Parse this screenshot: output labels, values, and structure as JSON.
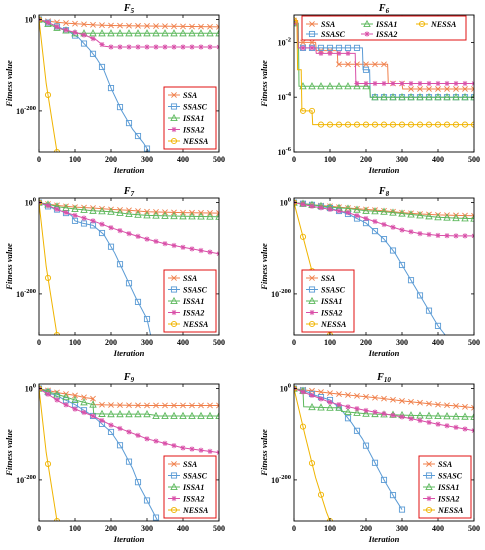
{
  "figure": {
    "colors": {
      "SSA": "#f07f4a",
      "SSASC": "#5b9bd5",
      "ISSA1": "#5cb85c",
      "ISSA2": "#d94fa8",
      "NESSA": "#f0b400"
    },
    "markers": {
      "SSA": "x",
      "SSASC": "square",
      "ISSA1": "triangle",
      "ISSA2": "star",
      "NESSA": "circle"
    }
  },
  "chart_data": [
    {
      "type": "line",
      "title": "F",
      "title_sub": "5",
      "xlabel": "Iteration",
      "ylabel": "Fitness value",
      "xlim": [
        0,
        500
      ],
      "xticks": [
        0,
        100,
        200,
        300,
        400,
        500
      ],
      "yscale": "log",
      "ylim_exp": [
        -290,
        10
      ],
      "yticks": [
        {
          "label": "10",
          "sup": "0",
          "exp": 0
        },
        {
          "label": "10",
          "sup": "-200",
          "exp": -200
        }
      ],
      "legend": {
        "position": "bottom-right",
        "layout": "1col"
      },
      "series": [
        {
          "name": "SSA",
          "x": [
            0,
            10,
            30,
            50,
            80,
            120,
            160,
            200,
            300,
            400,
            500
          ],
          "y_exp": [
            0,
            -2,
            -4,
            -6,
            -8,
            -10,
            -12,
            -13,
            -14,
            -15,
            -16
          ]
        },
        {
          "name": "SSASC",
          "x": [
            0,
            20,
            50,
            80,
            110,
            140,
            160,
            180,
            200,
            230,
            260,
            290,
            310
          ],
          "y_exp": [
            0,
            -5,
            -15,
            -25,
            -40,
            -65,
            -85,
            -110,
            -150,
            -200,
            -240,
            -270,
            -295
          ]
        },
        {
          "name": "ISSA1",
          "x": [
            0,
            20,
            50,
            80,
            100,
            500
          ],
          "y_exp": [
            0,
            -8,
            -18,
            -25,
            -30,
            -30
          ]
        },
        {
          "name": "ISSA2",
          "x": [
            0,
            30,
            60,
            100,
            130,
            160,
            180,
            200,
            230,
            500
          ],
          "y_exp": [
            0,
            -8,
            -20,
            -28,
            -35,
            -45,
            -58,
            -60,
            -60,
            -60
          ]
        },
        {
          "name": "NESSA",
          "x": [
            0,
            20,
            50
          ],
          "y_exp": [
            0,
            -140,
            -290
          ]
        }
      ]
    },
    {
      "type": "line",
      "title": "F",
      "title_sub": "6",
      "xlabel": "Iteration",
      "ylabel": "Fitness value",
      "xlim": [
        0,
        500
      ],
      "xticks": [
        0,
        100,
        200,
        300,
        400,
        500
      ],
      "yscale": "log",
      "ylim_exp": [
        -6,
        -1
      ],
      "yticks": [
        {
          "label": "10",
          "sup": "-2",
          "exp": -2
        },
        {
          "label": "10",
          "sup": "-4",
          "exp": -4
        },
        {
          "label": "10",
          "sup": "-6",
          "exp": -6
        }
      ],
      "legend": {
        "position": "top",
        "layout": "3col"
      },
      "series": [
        {
          "name": "SSA",
          "x": [
            0,
            10,
            12,
            60,
            62,
            120,
            122,
            260,
            262,
            300,
            302,
            500
          ],
          "y_exp": [
            -1.2,
            -1.2,
            -2.0,
            -2.0,
            -2.3,
            -2.3,
            -2.8,
            -2.8,
            -3.5,
            -3.5,
            -3.7,
            -3.7
          ]
        },
        {
          "name": "SSASC",
          "x": [
            0,
            10,
            12,
            190,
            192,
            210,
            212,
            500
          ],
          "y_exp": [
            -1.3,
            -1.3,
            -2.2,
            -2.2,
            -3.0,
            -3.0,
            -4.0,
            -4.0
          ]
        },
        {
          "name": "ISSA1",
          "x": [
            0,
            12,
            14,
            210,
            212,
            500
          ],
          "y_exp": [
            -1.3,
            -1.3,
            -3.6,
            -3.6,
            -4.0,
            -4.0
          ]
        },
        {
          "name": "ISSA2",
          "x": [
            0,
            10,
            12,
            60,
            62,
            170,
            172,
            500
          ],
          "y_exp": [
            -1.3,
            -1.3,
            -2.2,
            -2.2,
            -2.4,
            -2.4,
            -3.5,
            -3.5
          ]
        },
        {
          "name": "NESSA",
          "x": [
            0,
            8,
            10,
            20,
            22,
            50,
            52,
            500
          ],
          "y_exp": [
            -1.2,
            -1.2,
            -3.0,
            -3.0,
            -4.5,
            -4.5,
            -5.0,
            -5.0
          ]
        }
      ]
    },
    {
      "type": "line",
      "title": "F",
      "title_sub": "7",
      "xlabel": "Iteration",
      "ylabel": "Fitness value",
      "xlim": [
        0,
        500
      ],
      "xticks": [
        0,
        100,
        200,
        300,
        400,
        500
      ],
      "yscale": "log",
      "ylim_exp": [
        -290,
        10
      ],
      "yticks": [
        {
          "label": "10",
          "sup": "0",
          "exp": 0
        },
        {
          "label": "10",
          "sup": "-200",
          "exp": -200
        }
      ],
      "legend": {
        "position": "bottom-right",
        "layout": "1col"
      },
      "series": [
        {
          "name": "SSA",
          "x": [
            0,
            30,
            60,
            100,
            150,
            200,
            250,
            300,
            400,
            500
          ],
          "y_exp": [
            0,
            -4,
            -7,
            -10,
            -12,
            -15,
            -17,
            -20,
            -22,
            -23
          ]
        },
        {
          "name": "SSASC",
          "x": [
            0,
            30,
            60,
            90,
            100,
            120,
            150,
            180,
            210,
            240,
            270,
            300,
            310
          ],
          "y_exp": [
            0,
            -10,
            -18,
            -28,
            -40,
            -45,
            -50,
            -70,
            -110,
            -160,
            -210,
            -255,
            -290
          ]
        },
        {
          "name": "ISSA1",
          "x": [
            0,
            30,
            60,
            100,
            150,
            200,
            250,
            300,
            400,
            500
          ],
          "y_exp": [
            0,
            -5,
            -10,
            -14,
            -18,
            -20,
            -25,
            -28,
            -30,
            -31
          ]
        },
        {
          "name": "ISSA2",
          "x": [
            0,
            30,
            60,
            100,
            150,
            200,
            250,
            300,
            350,
            400,
            450,
            500
          ],
          "y_exp": [
            0,
            -8,
            -18,
            -28,
            -40,
            -55,
            -68,
            -80,
            -90,
            -98,
            -105,
            -112
          ]
        },
        {
          "name": "NESSA",
          "x": [
            0,
            20,
            50
          ],
          "y_exp": [
            0,
            -140,
            -290
          ]
        }
      ]
    },
    {
      "type": "line",
      "title": "F",
      "title_sub": "8",
      "xlabel": "Iteration",
      "ylabel": "Fitness value",
      "xlim": [
        0,
        500
      ],
      "xticks": [
        0,
        100,
        200,
        300,
        400,
        500
      ],
      "yscale": "log",
      "ylim_exp": [
        -290,
        10
      ],
      "yticks": [
        {
          "label": "10",
          "sup": "0",
          "exp": 0
        },
        {
          "label": "10",
          "sup": "-200",
          "exp": -200
        }
      ],
      "legend": {
        "position": "bottom-left",
        "layout": "1col"
      },
      "series": [
        {
          "name": "SSA",
          "x": [
            0,
            50,
            100,
            150,
            200,
            250,
            300,
            350,
            400,
            450,
            500
          ],
          "y_exp": [
            0,
            -5,
            -8,
            -12,
            -15,
            -18,
            -22,
            -25,
            -27,
            -28,
            -29
          ]
        },
        {
          "name": "SSASC",
          "x": [
            0,
            50,
            100,
            150,
            200,
            250,
            280,
            310,
            340,
            370,
            400,
            420
          ],
          "y_exp": [
            0,
            -5,
            -12,
            -25,
            -45,
            -80,
            -110,
            -150,
            -190,
            -230,
            -270,
            -290
          ]
        },
        {
          "name": "ISSA1",
          "x": [
            0,
            50,
            100,
            150,
            200,
            250,
            300,
            350,
            400,
            450,
            500
          ],
          "y_exp": [
            0,
            -5,
            -10,
            -13,
            -18,
            -20,
            -24,
            -28,
            -32,
            -34,
            -35
          ]
        },
        {
          "name": "ISSA2",
          "x": [
            0,
            50,
            100,
            150,
            200,
            250,
            300,
            350,
            400,
            450,
            500
          ],
          "y_exp": [
            0,
            -8,
            -15,
            -22,
            -35,
            -48,
            -60,
            -68,
            -72,
            -73,
            -73
          ]
        },
        {
          "name": "NESSA",
          "x": [
            0,
            20,
            50,
            80,
            100
          ],
          "y_exp": [
            0,
            -60,
            -150,
            -240,
            -290
          ]
        }
      ]
    },
    {
      "type": "line",
      "title": "F",
      "title_sub": "9",
      "xlabel": "Iteration",
      "ylabel": "Fitness value",
      "xlim": [
        0,
        500
      ],
      "xticks": [
        0,
        100,
        200,
        300,
        400,
        500
      ],
      "yscale": "log",
      "ylim_exp": [
        -290,
        10
      ],
      "yticks": [
        {
          "label": "10",
          "sup": "0",
          "exp": 0
        },
        {
          "label": "10",
          "sup": "-200",
          "exp": -200
        }
      ],
      "legend": {
        "position": "bottom-right",
        "layout": "1col"
      },
      "series": [
        {
          "name": "SSA",
          "x": [
            0,
            30,
            60,
            100,
            130,
            150,
            152,
            200,
            300,
            400,
            500
          ],
          "y_exp": [
            0,
            -5,
            -10,
            -15,
            -20,
            -22,
            -35,
            -36,
            -37,
            -37,
            -37
          ]
        },
        {
          "name": "SSASC",
          "x": [
            0,
            30,
            60,
            100,
            150,
            200,
            230,
            260,
            280,
            300,
            320,
            330
          ],
          "y_exp": [
            0,
            -10,
            -20,
            -35,
            -60,
            -95,
            -130,
            -175,
            -215,
            -245,
            -275,
            -290
          ]
        },
        {
          "name": "ISSA1",
          "x": [
            0,
            30,
            60,
            100,
            150,
            152,
            200,
            300,
            320,
            322,
            500
          ],
          "y_exp": [
            0,
            -8,
            -15,
            -25,
            -35,
            -55,
            -56,
            -56,
            -58,
            -60,
            -60
          ]
        },
        {
          "name": "ISSA2",
          "x": [
            0,
            30,
            60,
            100,
            150,
            200,
            250,
            300,
            350,
            400,
            450,
            500
          ],
          "y_exp": [
            0,
            -15,
            -30,
            -45,
            -60,
            -80,
            -95,
            -110,
            -120,
            -130,
            -135,
            -140
          ]
        },
        {
          "name": "NESSA",
          "x": [
            0,
            20,
            50
          ],
          "y_exp": [
            0,
            -140,
            -290
          ]
        }
      ]
    },
    {
      "type": "line",
      "title": "F",
      "title_sub": "10",
      "xlabel": "Iteration",
      "ylabel": "Fitness value",
      "xlim": [
        0,
        500
      ],
      "xticks": [
        0,
        100,
        200,
        300,
        400,
        500
      ],
      "yscale": "log",
      "ylim_exp": [
        -290,
        10
      ],
      "yticks": [
        {
          "label": "10",
          "sup": "0",
          "exp": 0
        },
        {
          "label": "10",
          "sup": "-200",
          "exp": -200
        }
      ],
      "legend": {
        "position": "bottom-right",
        "layout": "1col"
      },
      "series": [
        {
          "name": "SSA",
          "x": [
            0,
            50,
            100,
            150,
            200,
            250,
            300,
            350,
            400,
            450,
            500
          ],
          "y_exp": [
            0,
            -5,
            -10,
            -14,
            -18,
            -22,
            -27,
            -31,
            -35,
            -38,
            -42
          ]
        },
        {
          "name": "SSASC",
          "x": [
            0,
            30,
            60,
            100,
            130,
            160,
            190,
            220,
            250,
            280,
            300
          ],
          "y_exp": [
            0,
            -5,
            -15,
            -25,
            -45,
            -75,
            -110,
            -155,
            -200,
            -240,
            -265
          ]
        },
        {
          "name": "ISSA1",
          "x": [
            0,
            25,
            27,
            100,
            130,
            132,
            200,
            300,
            400,
            500
          ],
          "y_exp": [
            0,
            -5,
            -40,
            -42,
            -42,
            -50,
            -55,
            -58,
            -60,
            -62
          ]
        },
        {
          "name": "ISSA2",
          "x": [
            0,
            50,
            100,
            150,
            200,
            250,
            300,
            350,
            400,
            450,
            500
          ],
          "y_exp": [
            0,
            -15,
            -30,
            -40,
            -48,
            -55,
            -62,
            -70,
            -78,
            -85,
            -92
          ]
        },
        {
          "name": "NESSA",
          "x": [
            0,
            30,
            60,
            90,
            100
          ],
          "y_exp": [
            0,
            -100,
            -195,
            -270,
            -290
          ]
        }
      ]
    }
  ]
}
